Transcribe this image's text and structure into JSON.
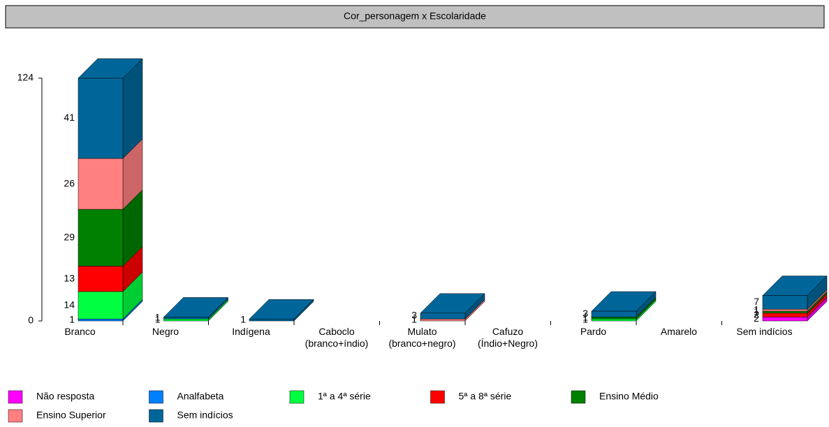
{
  "chart_data": {
    "type": "bar3d_stacked",
    "title": "Cor_personagem x Escolaridade",
    "categories": [
      "Branco",
      "Negro",
      "Indígena",
      "Caboclo (branco+índio)",
      "Mulato (branco+negro)",
      "Cafuzo (Índio+Negro)",
      "Pardo",
      "Amarelo",
      "Sem indícios"
    ],
    "series": [
      {
        "name": "Não resposta",
        "color": "#ff00ff",
        "values": [
          null,
          null,
          null,
          null,
          null,
          null,
          null,
          null,
          2
        ]
      },
      {
        "name": "Analfabeta",
        "color": "#0080ff",
        "values": [
          1,
          null,
          null,
          null,
          null,
          null,
          null,
          null,
          null
        ]
      },
      {
        "name": "1ª a 4ª série",
        "color": "#00ff40",
        "values": [
          14,
          1,
          null,
          null,
          null,
          null,
          1,
          null,
          null
        ]
      },
      {
        "name": "5ª a 8ª série",
        "color": "#ff0000",
        "values": [
          13,
          null,
          null,
          null,
          null,
          null,
          null,
          null,
          2
        ]
      },
      {
        "name": "Ensino Médio",
        "color": "#008000",
        "values": [
          29,
          null,
          null,
          null,
          null,
          null,
          1,
          null,
          1
        ]
      },
      {
        "name": "Ensino Superior",
        "color": "#ff8080",
        "values": [
          26,
          null,
          null,
          null,
          1,
          null,
          null,
          null,
          1
        ]
      },
      {
        "name": "Sem indícios",
        "color": "#006699",
        "values": [
          41,
          1,
          1,
          null,
          3,
          null,
          3,
          null,
          7
        ]
      }
    ],
    "ylim": [
      0,
      124
    ],
    "yticks": [
      0,
      124
    ]
  }
}
